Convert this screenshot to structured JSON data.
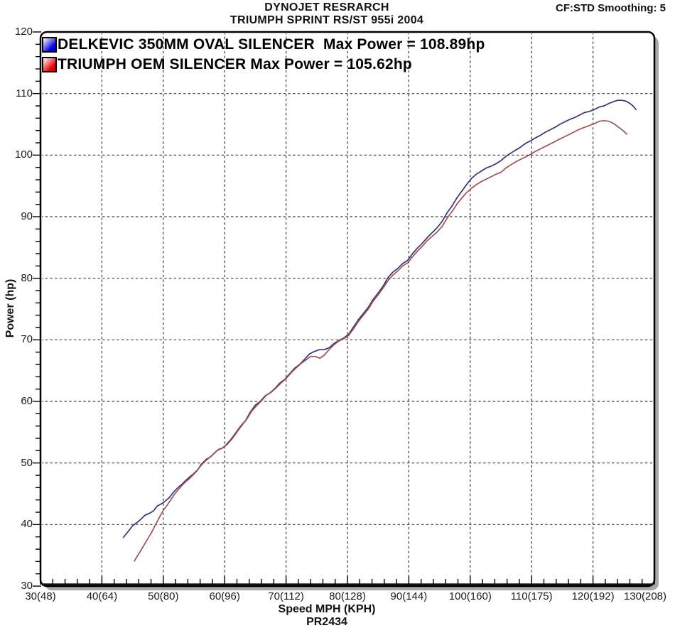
{
  "header": {
    "title_line1": "DYNOJET RESRARCH",
    "title_line2": "TRIUMPH SPRINT RS/ST 955i 2004",
    "correction_smoothing": "CF:STD Smoothing: 5"
  },
  "footer": {
    "run_id": "PR2434"
  },
  "chart_data": {
    "type": "line",
    "title": "DYNOJET RESRARCH",
    "subtitle": "TRIUMPH SPRINT RS/ST 955i 2004",
    "annotation_top_right": "CF:STD Smoothing: 5",
    "footer": "PR2434",
    "xlabel": "Speed MPH (KPH)",
    "ylabel": "Power (hp)",
    "xlim": [
      30,
      130
    ],
    "ylim": [
      30,
      120
    ],
    "x_major_tick_step": 10,
    "x_minor_tick_step": 2,
    "y_major_tick_step": 10,
    "y_minor_tick_step": 2,
    "grid": "dashed at major ticks",
    "legend_position": "top-left inside plot",
    "x_tick_labels": [
      "30(48)",
      "40(64)",
      "50(80)",
      "60(96)",
      "70(112)",
      "80(128)",
      "90(144)",
      "100(160)",
      "110(175)",
      "120(192)",
      "130(208)"
    ],
    "y_tick_labels": [
      "30",
      "40",
      "50",
      "60",
      "70",
      "80",
      "90",
      "100",
      "110",
      "120"
    ],
    "colors": {
      "grid": "#3c3c3c",
      "axis": "#000000",
      "shadow": "#a8a8a8"
    },
    "series": [
      {
        "name": "DELKEVIC 350MM OVAL SILENCER",
        "legend_label": "DELKEVIC 350MM OVAL SILENCER  Max Power = 108.89hp",
        "max_power_hp": 108.89,
        "line_color": "#34347c",
        "swatch_color": "#0000e0",
        "points": [
          [
            43.5,
            37.9
          ],
          [
            44.3,
            38.9
          ],
          [
            45,
            39.8
          ],
          [
            45.7,
            40.3
          ],
          [
            46.4,
            40.9
          ],
          [
            47,
            41.5
          ],
          [
            47.7,
            41.8
          ],
          [
            48.4,
            42.2
          ],
          [
            49,
            43.0
          ],
          [
            49.6,
            43.3
          ],
          [
            50.2,
            43.7
          ],
          [
            51,
            44.4
          ],
          [
            51.7,
            45.3
          ],
          [
            52.4,
            46.0
          ],
          [
            53,
            46.5
          ],
          [
            53.7,
            47.2
          ],
          [
            54.4,
            47.8
          ],
          [
            55,
            48.3
          ],
          [
            55.6,
            48.9
          ],
          [
            56.2,
            49.8
          ],
          [
            57,
            50.6
          ],
          [
            57.7,
            51.0
          ],
          [
            58.4,
            51.7
          ],
          [
            59,
            52.2
          ],
          [
            59.6,
            52.4
          ],
          [
            60.2,
            52.9
          ],
          [
            61,
            53.8
          ],
          [
            61.8,
            54.9
          ],
          [
            62.6,
            56.0
          ],
          [
            63.4,
            56.9
          ],
          [
            64.2,
            58.3
          ],
          [
            65,
            59.4
          ],
          [
            65.8,
            60.0
          ],
          [
            66.6,
            60.9
          ],
          [
            67.4,
            61.4
          ],
          [
            68.2,
            62.1
          ],
          [
            69,
            63.0
          ],
          [
            69.8,
            63.6
          ],
          [
            70.6,
            64.5
          ],
          [
            71.4,
            65.4
          ],
          [
            72.2,
            66.0
          ],
          [
            73,
            66.8
          ],
          [
            73.8,
            67.7
          ],
          [
            74.6,
            68.1
          ],
          [
            75.4,
            68.4
          ],
          [
            76.2,
            68.4
          ],
          [
            77,
            68.7
          ],
          [
            77.8,
            69.4
          ],
          [
            78.6,
            69.9
          ],
          [
            79.4,
            70.3
          ],
          [
            80.2,
            70.9
          ],
          [
            81,
            72.1
          ],
          [
            81.8,
            73.3
          ],
          [
            82.6,
            74.3
          ],
          [
            83.4,
            75.3
          ],
          [
            84.2,
            76.6
          ],
          [
            85,
            77.6
          ],
          [
            85.8,
            78.7
          ],
          [
            86.6,
            80.1
          ],
          [
            87.4,
            81.0
          ],
          [
            88.2,
            81.6
          ],
          [
            89,
            82.4
          ],
          [
            89.8,
            82.9
          ],
          [
            90.6,
            84.0
          ],
          [
            91.4,
            84.9
          ],
          [
            92.2,
            85.7
          ],
          [
            93,
            86.6
          ],
          [
            93.8,
            87.4
          ],
          [
            94.6,
            88.2
          ],
          [
            95.4,
            89.2
          ],
          [
            96.2,
            90.6
          ],
          [
            97,
            91.7
          ],
          [
            97.8,
            93.0
          ],
          [
            98.6,
            94.1
          ],
          [
            99.4,
            95.2
          ],
          [
            100.2,
            96.2
          ],
          [
            101,
            96.9
          ],
          [
            101.8,
            97.4
          ],
          [
            102.6,
            97.9
          ],
          [
            103.4,
            98.2
          ],
          [
            104.2,
            98.6
          ],
          [
            105,
            99.1
          ],
          [
            105.8,
            99.8
          ],
          [
            106.6,
            100.3
          ],
          [
            107.4,
            100.8
          ],
          [
            108.2,
            101.3
          ],
          [
            109,
            101.9
          ],
          [
            109.8,
            102.3
          ],
          [
            110.6,
            102.8
          ],
          [
            111.4,
            103.2
          ],
          [
            112.2,
            103.7
          ],
          [
            113,
            104.1
          ],
          [
            113.8,
            104.5
          ],
          [
            114.6,
            105.0
          ],
          [
            115.4,
            105.4
          ],
          [
            116.2,
            105.8
          ],
          [
            117,
            106.1
          ],
          [
            117.8,
            106.5
          ],
          [
            118.6,
            106.9
          ],
          [
            119.4,
            107.1
          ],
          [
            120.2,
            107.4
          ],
          [
            121,
            107.8
          ],
          [
            121.8,
            108.0
          ],
          [
            122.6,
            108.4
          ],
          [
            123.4,
            108.7
          ],
          [
            124,
            108.9
          ],
          [
            124.7,
            108.9
          ],
          [
            125.3,
            108.8
          ],
          [
            126,
            108.4
          ],
          [
            126.5,
            108.0
          ],
          [
            127,
            107.4
          ]
        ]
      },
      {
        "name": "TRIUMPH OEM SILENCER",
        "legend_label": "TRIUMPH OEM SILENCER Max Power = 105.62hp",
        "max_power_hp": 105.62,
        "line_color": "#9e5252",
        "swatch_color": "#e60000",
        "points": [
          [
            45.3,
            34.1
          ],
          [
            45.8,
            34.9
          ],
          [
            46.4,
            35.9
          ],
          [
            47,
            36.9
          ],
          [
            47.6,
            37.9
          ],
          [
            48.2,
            38.9
          ],
          [
            48.8,
            40.1
          ],
          [
            49.4,
            41.2
          ],
          [
            50,
            42.3
          ],
          [
            50.6,
            43.1
          ],
          [
            51.2,
            44.0
          ],
          [
            51.8,
            44.9
          ],
          [
            52.4,
            45.6
          ],
          [
            53,
            46.3
          ],
          [
            53.6,
            46.9
          ],
          [
            54.2,
            47.4
          ],
          [
            54.8,
            48.0
          ],
          [
            55.4,
            48.6
          ],
          [
            56,
            49.4
          ],
          [
            56.6,
            50.1
          ],
          [
            57.2,
            50.6
          ],
          [
            58,
            51.3
          ],
          [
            58.8,
            52.0
          ],
          [
            59.6,
            52.4
          ],
          [
            60.4,
            53.0
          ],
          [
            61.2,
            53.9
          ],
          [
            62,
            55.0
          ],
          [
            62.8,
            56.1
          ],
          [
            63.6,
            57.1
          ],
          [
            64.4,
            58.4
          ],
          [
            65.2,
            59.3
          ],
          [
            66,
            60.1
          ],
          [
            66.8,
            61.0
          ],
          [
            67.6,
            61.5
          ],
          [
            68.4,
            62.2
          ],
          [
            69.2,
            63.0
          ],
          [
            70,
            63.7
          ],
          [
            70.8,
            64.6
          ],
          [
            71.6,
            65.4
          ],
          [
            72.4,
            66.1
          ],
          [
            73.2,
            66.7
          ],
          [
            74,
            67.3
          ],
          [
            74.8,
            67.3
          ],
          [
            75.5,
            67.0
          ],
          [
            76.2,
            67.5
          ],
          [
            77,
            68.4
          ],
          [
            77.8,
            69.2
          ],
          [
            78.6,
            69.8
          ],
          [
            79.4,
            70.2
          ],
          [
            80.2,
            70.7
          ],
          [
            81,
            71.8
          ],
          [
            81.8,
            73.0
          ],
          [
            82.6,
            74.0
          ],
          [
            83.4,
            75.0
          ],
          [
            84.2,
            76.3
          ],
          [
            85,
            77.3
          ],
          [
            85.8,
            78.4
          ],
          [
            86.6,
            79.6
          ],
          [
            87.4,
            80.5
          ],
          [
            88.2,
            81.2
          ],
          [
            89,
            82.0
          ],
          [
            89.8,
            82.5
          ],
          [
            90.6,
            83.5
          ],
          [
            91.4,
            84.4
          ],
          [
            92.2,
            85.2
          ],
          [
            93,
            86.1
          ],
          [
            93.8,
            86.8
          ],
          [
            94.6,
            87.5
          ],
          [
            95.4,
            88.4
          ],
          [
            96.2,
            89.7
          ],
          [
            97,
            90.8
          ],
          [
            97.8,
            92.0
          ],
          [
            98.6,
            93.0
          ],
          [
            99.4,
            93.9
          ],
          [
            100.2,
            94.6
          ],
          [
            101,
            95.2
          ],
          [
            101.8,
            95.7
          ],
          [
            102.6,
            96.1
          ],
          [
            103.4,
            96.5
          ],
          [
            104.2,
            96.9
          ],
          [
            105,
            97.2
          ],
          [
            105.8,
            97.9
          ],
          [
            106.6,
            98.4
          ],
          [
            107.4,
            98.9
          ],
          [
            108.2,
            99.3
          ],
          [
            109,
            99.7
          ],
          [
            109.8,
            100.1
          ],
          [
            110.6,
            100.6
          ],
          [
            111.4,
            101.0
          ],
          [
            112.2,
            101.4
          ],
          [
            113,
            101.8
          ],
          [
            113.8,
            102.2
          ],
          [
            114.6,
            102.6
          ],
          [
            115.4,
            103.0
          ],
          [
            116.2,
            103.4
          ],
          [
            117,
            103.8
          ],
          [
            117.8,
            104.2
          ],
          [
            118.6,
            104.5
          ],
          [
            119.4,
            104.8
          ],
          [
            120.2,
            105.1
          ],
          [
            121,
            105.5
          ],
          [
            121.8,
            105.6
          ],
          [
            122.6,
            105.5
          ],
          [
            123.4,
            105.1
          ],
          [
            124.2,
            104.5
          ],
          [
            125,
            103.9
          ],
          [
            125.5,
            103.4
          ]
        ]
      }
    ]
  }
}
